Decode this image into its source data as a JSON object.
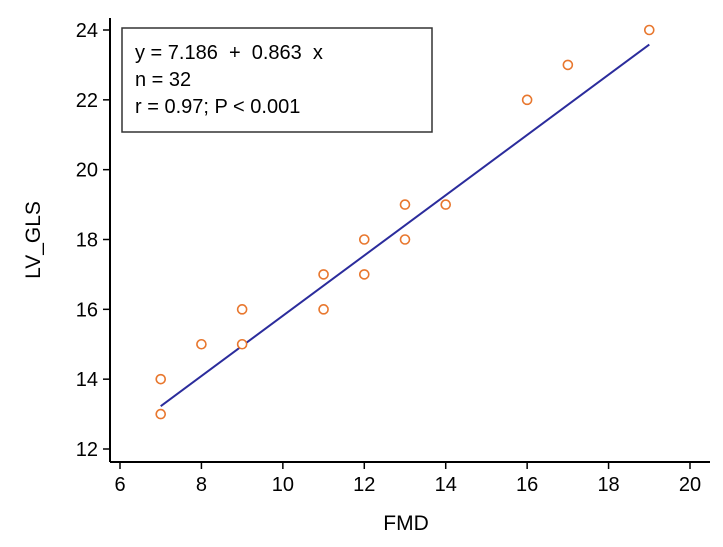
{
  "chart_data": {
    "type": "scatter",
    "title": "",
    "xlabel": "FMD",
    "ylabel": "LV_GLS",
    "xlim": [
      6,
      20
    ],
    "ylim": [
      12,
      24
    ],
    "x_ticks": [
      6,
      8,
      10,
      12,
      14,
      16,
      18,
      20
    ],
    "y_ticks": [
      12,
      14,
      16,
      18,
      20,
      22,
      24
    ],
    "grid": false,
    "points": [
      {
        "x": 7,
        "y": 13
      },
      {
        "x": 7,
        "y": 14
      },
      {
        "x": 8,
        "y": 15
      },
      {
        "x": 9,
        "y": 15
      },
      {
        "x": 9,
        "y": 16
      },
      {
        "x": 11,
        "y": 16
      },
      {
        "x": 11,
        "y": 17
      },
      {
        "x": 12,
        "y": 17
      },
      {
        "x": 12,
        "y": 18
      },
      {
        "x": 13,
        "y": 18
      },
      {
        "x": 13,
        "y": 19
      },
      {
        "x": 14,
        "y": 19
      },
      {
        "x": 16,
        "y": 22
      },
      {
        "x": 17,
        "y": 23
      },
      {
        "x": 19,
        "y": 24
      }
    ],
    "regression": {
      "intercept": 7.186,
      "slope": 0.863,
      "x_range": [
        7,
        19
      ]
    },
    "annotation": {
      "lines": [
        "y = 7.186  +  0.863  x",
        "n = 32",
        "r = 0.97; P < 0.001"
      ],
      "position": "top-left"
    },
    "colors": {
      "points": "#e8772e",
      "regression_line": "#2b2c9c",
      "axes": "#000000"
    }
  }
}
